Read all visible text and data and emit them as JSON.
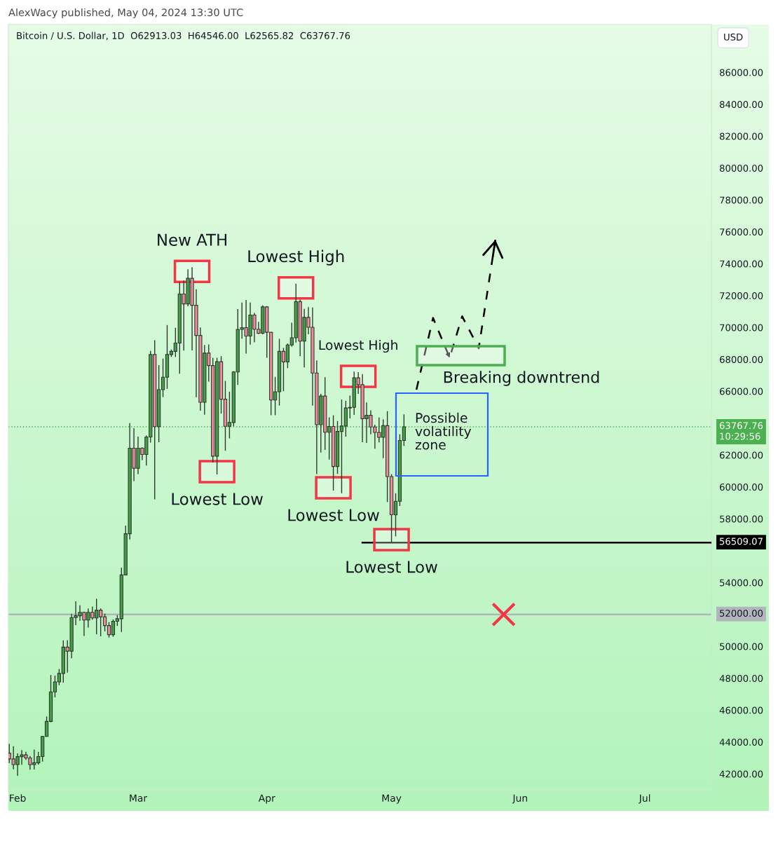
{
  "chart_data": {
    "type": "candlestick",
    "title": "Bitcoin / U.S. Dollar, 1D  O62913.03  H64546.00  L62565.82  C63767.76",
    "ylabel": "USD",
    "x": [
      "2024-01-30",
      "2024-01-31",
      "2024-02-01",
      "2024-02-02",
      "2024-02-03",
      "2024-02-04",
      "2024-02-05",
      "2024-02-06",
      "2024-02-07",
      "2024-02-08",
      "2024-02-09",
      "2024-02-10",
      "2024-02-11",
      "2024-02-12",
      "2024-02-13",
      "2024-02-14",
      "2024-02-15",
      "2024-02-16",
      "2024-02-17",
      "2024-02-18",
      "2024-02-19",
      "2024-02-20",
      "2024-02-21",
      "2024-02-22",
      "2024-02-23",
      "2024-02-24",
      "2024-02-25",
      "2024-02-26",
      "2024-02-27",
      "2024-02-28",
      "2024-02-29",
      "2024-03-01",
      "2024-03-02",
      "2024-03-03",
      "2024-03-04",
      "2024-03-05",
      "2024-03-06",
      "2024-03-07",
      "2024-03-08",
      "2024-03-09",
      "2024-03-10",
      "2024-03-11",
      "2024-03-12",
      "2024-03-13",
      "2024-03-14",
      "2024-03-15",
      "2024-03-16",
      "2024-03-17",
      "2024-03-18",
      "2024-03-19",
      "2024-03-20",
      "2024-03-21",
      "2024-03-22",
      "2024-03-23",
      "2024-03-24",
      "2024-03-25",
      "2024-03-26",
      "2024-03-27",
      "2024-03-28",
      "2024-03-29",
      "2024-03-30",
      "2024-03-31",
      "2024-04-01",
      "2024-04-02",
      "2024-04-03",
      "2024-04-04",
      "2024-04-05",
      "2024-04-06",
      "2024-04-07",
      "2024-04-08",
      "2024-04-09",
      "2024-04-10",
      "2024-04-11",
      "2024-04-12",
      "2024-04-13",
      "2024-04-14",
      "2024-04-15",
      "2024-04-16",
      "2024-04-17",
      "2024-04-18",
      "2024-04-19",
      "2024-04-20",
      "2024-04-21",
      "2024-04-22",
      "2024-04-23",
      "2024-04-24",
      "2024-04-25",
      "2024-04-26",
      "2024-04-27",
      "2024-04-28",
      "2024-04-29",
      "2024-04-30",
      "2024-05-01",
      "2024-05-02",
      "2024-05-03",
      "2024-05-04"
    ],
    "ohlc": [
      [
        43300,
        43880,
        42680,
        42940
      ],
      [
        42940,
        43740,
        42290,
        42580
      ],
      [
        42580,
        43290,
        41880,
        43080
      ],
      [
        43080,
        43490,
        42570,
        43190
      ],
      [
        43190,
        43380,
        42880,
        43000
      ],
      [
        43000,
        43120,
        42260,
        42580
      ],
      [
        42580,
        43530,
        42280,
        42700
      ],
      [
        42700,
        43390,
        42580,
        43090
      ],
      [
        43090,
        44380,
        42770,
        44350
      ],
      [
        44350,
        45600,
        44330,
        45290
      ],
      [
        45290,
        48200,
        45240,
        47140
      ],
      [
        47140,
        48170,
        46800,
        47770
      ],
      [
        47770,
        48580,
        47560,
        48300
      ],
      [
        48300,
        50370,
        47720,
        49950
      ],
      [
        49950,
        50380,
        48350,
        49700
      ],
      [
        49700,
        52040,
        49250,
        51800
      ],
      [
        51800,
        52820,
        51330,
        51920
      ],
      [
        51920,
        52570,
        51600,
        52130
      ],
      [
        52130,
        52180,
        50650,
        51650
      ],
      [
        51650,
        52370,
        51180,
        52130
      ],
      [
        52130,
        52490,
        51670,
        51780
      ],
      [
        51780,
        52990,
        50760,
        52270
      ],
      [
        52270,
        52380,
        50630,
        51850
      ],
      [
        51850,
        52050,
        50940,
        51300
      ],
      [
        51300,
        51520,
        50550,
        50730
      ],
      [
        50730,
        51690,
        50600,
        51570
      ],
      [
        51570,
        51960,
        51280,
        51730
      ],
      [
        51730,
        54930,
        50900,
        54480
      ],
      [
        54480,
        57570,
        54450,
        57060
      ],
      [
        57060,
        64000,
        56700,
        62430
      ],
      [
        62430,
        63680,
        60360,
        61170
      ],
      [
        61170,
        63150,
        60800,
        62430
      ],
      [
        62430,
        62480,
        61680,
        62030
      ],
      [
        62030,
        63230,
        61340,
        63130
      ],
      [
        63130,
        68530,
        62780,
        68300
      ],
      [
        68300,
        69200,
        59220,
        63780
      ],
      [
        63780,
        67640,
        62800,
        66100
      ],
      [
        66100,
        68050,
        65630,
        66880
      ],
      [
        66880,
        70150,
        66150,
        68300
      ],
      [
        68300,
        68620,
        68150,
        68500
      ],
      [
        68500,
        69980,
        68150,
        69020
      ],
      [
        69020,
        72850,
        67100,
        72100
      ],
      [
        72100,
        72950,
        68550,
        71480
      ],
      [
        71480,
        73650,
        71330,
        73080
      ],
      [
        73080,
        73780,
        68560,
        71390
      ],
      [
        71390,
        72400,
        65630,
        69500
      ],
      [
        69500,
        70000,
        64780,
        65310
      ],
      [
        65310,
        68900,
        64530,
        68390
      ],
      [
        68390,
        68930,
        66600,
        67610
      ],
      [
        67610,
        68100,
        61530,
        61930
      ],
      [
        61930,
        68100,
        60780,
        67850
      ],
      [
        67850,
        68200,
        64600,
        65500
      ],
      [
        65500,
        66650,
        62270,
        63800
      ],
      [
        63800,
        65970,
        63040,
        64040
      ],
      [
        64040,
        67260,
        63800,
        67210
      ],
      [
        67210,
        71150,
        66400,
        69880
      ],
      [
        69880,
        71560,
        69300,
        69990
      ],
      [
        69990,
        71730,
        68360,
        69460
      ],
      [
        69460,
        71560,
        68920,
        70780
      ],
      [
        70780,
        70910,
        69080,
        69890
      ],
      [
        69890,
        70350,
        69580,
        69640
      ],
      [
        69640,
        71380,
        69570,
        71290
      ],
      [
        71290,
        71340,
        68100,
        69700
      ],
      [
        69700,
        69700,
        64500,
        65450
      ],
      [
        65450,
        66900,
        64500,
        65970
      ],
      [
        65970,
        69290,
        65100,
        68500
      ],
      [
        68500,
        68720,
        66000,
        67840
      ],
      [
        67840,
        69000,
        67450,
        68900
      ],
      [
        68900,
        70300,
        68800,
        69350
      ],
      [
        69350,
        72750,
        69050,
        71620
      ],
      [
        71620,
        71750,
        68200,
        69140
      ],
      [
        69140,
        71170,
        67500,
        70630
      ],
      [
        70630,
        71270,
        69570,
        70010
      ],
      [
        70010,
        71250,
        65100,
        67140
      ],
      [
        67140,
        67930,
        60800,
        63900
      ],
      [
        63900,
        65830,
        62150,
        65700
      ],
      [
        65700,
        66880,
        62320,
        63430
      ],
      [
        63430,
        64360,
        61710,
        63790
      ],
      [
        63790,
        64490,
        59770,
        61280
      ],
      [
        61280,
        64130,
        60820,
        63480
      ],
      [
        63480,
        65480,
        59600,
        63820
      ],
      [
        63820,
        65400,
        63150,
        64950
      ],
      [
        64950,
        65730,
        64300,
        64990
      ],
      [
        64990,
        67230,
        64520,
        66840
      ],
      [
        66840,
        67200,
        65830,
        66410
      ],
      [
        66410,
        67080,
        62800,
        64280
      ],
      [
        64280,
        65300,
        62760,
        64490
      ],
      [
        64490,
        64800,
        63300,
        63760
      ],
      [
        63760,
        63900,
        62400,
        63420
      ],
      [
        63420,
        64350,
        62790,
        63110
      ],
      [
        63110,
        64230,
        61800,
        63840
      ],
      [
        63840,
        64750,
        59050,
        60650
      ],
      [
        60650,
        60800,
        56520,
        58250
      ],
      [
        58250,
        59600,
        56900,
        59100
      ],
      [
        59100,
        63300,
        58800,
        62910
      ],
      [
        62913.03,
        64546.0,
        62565.82,
        63767.76
      ]
    ],
    "colors": [
      "#f28b9e",
      "#f28b9e",
      "#43a047",
      "#43a047",
      "#f28b9e",
      "#f28b9e",
      "#43a047",
      "#43a047",
      "#43a047",
      "#43a047",
      "#43a047",
      "#43a047",
      "#43a047",
      "#43a047",
      "#f28b9e",
      "#43a047",
      "#43a047",
      "#43a047",
      "#f28b9e",
      "#43a047",
      "#f28b9e",
      "#43a047",
      "#f28b9e",
      "#f28b9e",
      "#f28b9e",
      "#43a047",
      "#43a047",
      "#43a047",
      "#43a047",
      "#43a047",
      "#f28b9e",
      "#43a047",
      "#f28b9e",
      "#43a047",
      "#43a047",
      "#f28b9e",
      "#43a047",
      "#43a047",
      "#43a047",
      "#43a047",
      "#43a047",
      "#43a047",
      "#f28b9e",
      "#43a047",
      "#f28b9e",
      "#f28b9e",
      "#f28b9e",
      "#43a047",
      "#f28b9e",
      "#f28b9e",
      "#43a047",
      "#f28b9e",
      "#f28b9e",
      "#43a047",
      "#43a047",
      "#43a047",
      "#43a047",
      "#f28b9e",
      "#43a047",
      "#f28b9e",
      "#f28b9e",
      "#43a047",
      "#f28b9e",
      "#f28b9e",
      "#43a047",
      "#43a047",
      "#f28b9e",
      "#43a047",
      "#43a047",
      "#43a047",
      "#f28b9e",
      "#43a047",
      "#f28b9e",
      "#f28b9e",
      "#f28b9e",
      "#43a047",
      "#f28b9e",
      "#43a047",
      "#f28b9e",
      "#43a047",
      "#43a047",
      "#43a047",
      "#43a047",
      "#43a047",
      "#f28b9e",
      "#f28b9e",
      "#43a047",
      "#f28b9e",
      "#f28b9e",
      "#f28b9e",
      "#43a047",
      "#f28b9e",
      "#f28b9e",
      "#43a047",
      "#43a047",
      "#43a047"
    ],
    "series": [
      {
        "type": "line",
        "x": [
          "2024-04-24",
          "2024-07-17"
        ],
        "values": [
          56509.07,
          56509.07
        ],
        "color": "#000000",
        "line_style": "solid",
        "value_labels": [
          null,
          "56509.07"
        ]
      },
      {
        "type": "line",
        "x": [
          "2024-05-07",
          "2024-05-11",
          "2024-05-15",
          "2024-05-18",
          "2024-05-22",
          "2024-05-26"
        ],
        "values": [
          66100,
          70600,
          68100,
          70700,
          68700,
          75500
        ],
        "color": "#000000",
        "line_style": "dashed"
      },
      {
        "type": "scatter",
        "x": [
          "2024-05-28"
        ],
        "values": [
          52000
        ],
        "color": "#f23645",
        "marker": "cross"
      }
    ],
    "ref_lines": [
      {
        "axis": "y",
        "value": 63767.76,
        "label": "63767.76\n10:29:56",
        "color": "#4caf50",
        "line_style": "dotted"
      },
      {
        "axis": "y",
        "value": 52000,
        "label": "52000.00",
        "color": "#b2b5be",
        "line_style": "solid"
      }
    ],
    "annotations": [
      "AlexWacy published, May 04, 2024 13:30 UTC",
      {
        "text": "New ATH",
        "x": "2024-03-14",
        "y": 73780
      },
      {
        "text": "Lowest High",
        "x": "2024-04-08",
        "y": 72750
      },
      {
        "text": "Lowest High",
        "x": "2024-04-23",
        "y": 67200
      },
      {
        "text": "Lowest Low",
        "x": "2024-03-20",
        "y": 60780
      },
      {
        "text": "Lowest Low",
        "x": "2024-04-17",
        "y": 59770
      },
      {
        "text": "Lowest Low",
        "x": "2024-05-01",
        "y": 56520
      },
      "Possible\nvolatility\nzone",
      "Breaking downtrend"
    ],
    "xlim": [
      "2024-01-29T19:00",
      "2024-07-17"
    ],
    "xticks": [
      {
        "value": "2024-02-01",
        "label": "Feb"
      },
      {
        "value": "2024-03-01",
        "label": "Mar"
      },
      {
        "value": "2024-04-01",
        "label": "Apr"
      },
      {
        "value": "2024-05-01",
        "label": "May"
      },
      {
        "value": "2024-06-01",
        "label": "Jun"
      },
      {
        "value": "2024-07-01",
        "label": "Jul"
      }
    ],
    "ylim": [
      41000,
      89000
    ],
    "yticks": [
      {
        "value": 42000,
        "label": "42000.00"
      },
      {
        "value": 44000,
        "label": "44000.00"
      },
      {
        "value": 46000,
        "label": "46000.00"
      },
      {
        "value": 48000,
        "label": "48000.00"
      },
      {
        "value": 50000,
        "label": "50000.00"
      },
      {
        "value": 52000,
        "label": null
      },
      {
        "value": 54000,
        "label": "54000.00"
      },
      {
        "value": 58000,
        "label": "58000.00"
      },
      {
        "value": 60000,
        "label": "60000.00"
      },
      {
        "value": 62000,
        "label": "62000.00"
      },
      {
        "value": 66000,
        "label": "66000.00"
      },
      {
        "value": 68000,
        "label": "68000.00"
      },
      {
        "value": 70000,
        "label": "70000.00"
      },
      {
        "value": 72000,
        "label": "72000.00"
      },
      {
        "value": 74000,
        "label": "74000.00"
      },
      {
        "value": 76000,
        "label": "76000.00"
      },
      {
        "value": 78000,
        "label": "78000.00"
      },
      {
        "value": 80000,
        "label": "80000.00"
      },
      {
        "value": 82000,
        "label": "82000.00"
      },
      {
        "value": 84000,
        "label": "84000.00"
      },
      {
        "value": 86000,
        "label": "86000.00"
      }
    ]
  }
}
